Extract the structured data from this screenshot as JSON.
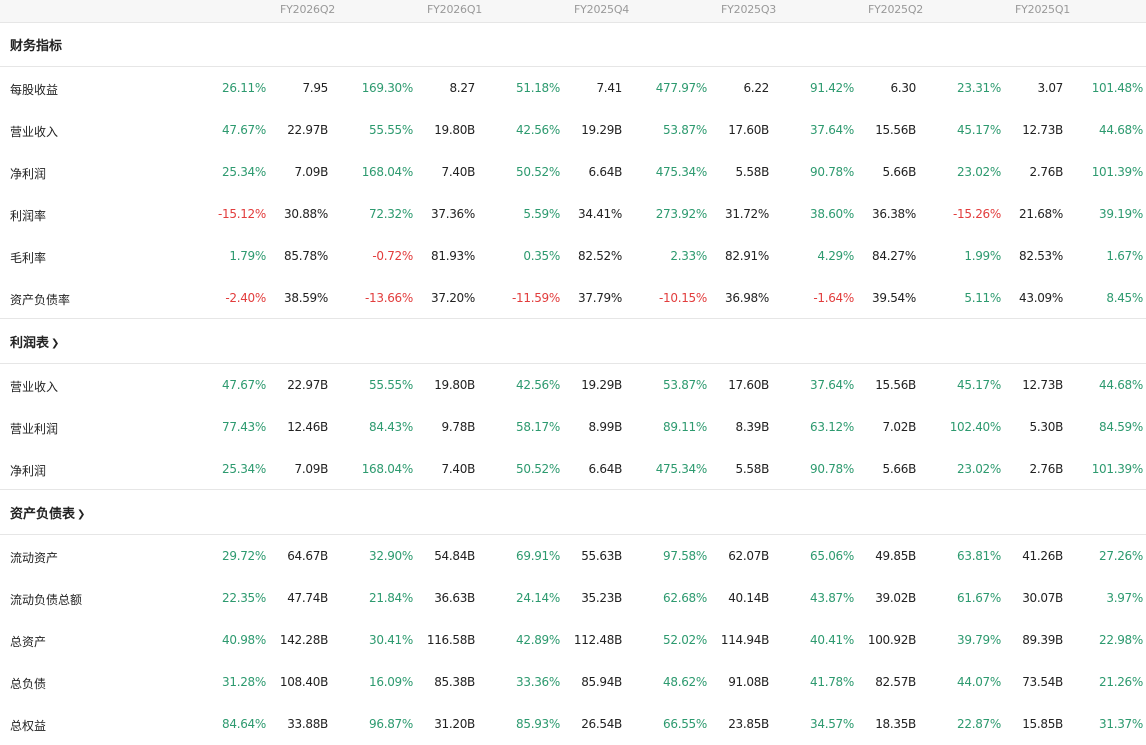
{
  "quarters": [
    "FY2026Q2",
    "FY2026Q1",
    "FY2025Q4",
    "FY2025Q3",
    "FY2025Q2",
    "FY2025Q1"
  ],
  "colors": {
    "positive": "#2d9a6f",
    "negative": "#e23d3d"
  },
  "sections": [
    {
      "title": "财务指标",
      "clickable": false,
      "rows": [
        {
          "label": "每股收益",
          "cells": [
            [
              "26.11%",
              "7.95"
            ],
            [
              "169.30%",
              "8.27"
            ],
            [
              "51.18%",
              "7.41"
            ],
            [
              "477.97%",
              "6.22"
            ],
            [
              "91.42%",
              "6.30"
            ],
            [
              "23.31%",
              "3.07"
            ]
          ],
          "tail": "101.48%"
        },
        {
          "label": "营业收入",
          "cells": [
            [
              "47.67%",
              "22.97B"
            ],
            [
              "55.55%",
              "19.80B"
            ],
            [
              "42.56%",
              "19.29B"
            ],
            [
              "53.87%",
              "17.60B"
            ],
            [
              "37.64%",
              "15.56B"
            ],
            [
              "45.17%",
              "12.73B"
            ]
          ],
          "tail": "44.68%"
        },
        {
          "label": "净利润",
          "cells": [
            [
              "25.34%",
              "7.09B"
            ],
            [
              "168.04%",
              "7.40B"
            ],
            [
              "50.52%",
              "6.64B"
            ],
            [
              "475.34%",
              "5.58B"
            ],
            [
              "90.78%",
              "5.66B"
            ],
            [
              "23.02%",
              "2.76B"
            ]
          ],
          "tail": "101.39%"
        },
        {
          "label": "利润率",
          "cells": [
            [
              "-15.12%",
              "30.88%"
            ],
            [
              "72.32%",
              "37.36%"
            ],
            [
              "5.59%",
              "34.41%"
            ],
            [
              "273.92%",
              "31.72%"
            ],
            [
              "38.60%",
              "36.38%"
            ],
            [
              "-15.26%",
              "21.68%"
            ]
          ],
          "tail": "39.19%"
        },
        {
          "label": "毛利率",
          "cells": [
            [
              "1.79%",
              "85.78%"
            ],
            [
              "-0.72%",
              "81.93%"
            ],
            [
              "0.35%",
              "82.52%"
            ],
            [
              "2.33%",
              "82.91%"
            ],
            [
              "4.29%",
              "84.27%"
            ],
            [
              "1.99%",
              "82.53%"
            ]
          ],
          "tail": "1.67%"
        },
        {
          "label": "资产负债率",
          "cells": [
            [
              "-2.40%",
              "38.59%"
            ],
            [
              "-13.66%",
              "37.20%"
            ],
            [
              "-11.59%",
              "37.79%"
            ],
            [
              "-10.15%",
              "36.98%"
            ],
            [
              "-1.64%",
              "39.54%"
            ],
            [
              "5.11%",
              "43.09%"
            ]
          ],
          "tail": "8.45%"
        }
      ]
    },
    {
      "title": "利润表",
      "clickable": true,
      "rows": [
        {
          "label": "营业收入",
          "cells": [
            [
              "47.67%",
              "22.97B"
            ],
            [
              "55.55%",
              "19.80B"
            ],
            [
              "42.56%",
              "19.29B"
            ],
            [
              "53.87%",
              "17.60B"
            ],
            [
              "37.64%",
              "15.56B"
            ],
            [
              "45.17%",
              "12.73B"
            ]
          ],
          "tail": "44.68%"
        },
        {
          "label": "营业利润",
          "cells": [
            [
              "77.43%",
              "12.46B"
            ],
            [
              "84.43%",
              "9.78B"
            ],
            [
              "58.17%",
              "8.99B"
            ],
            [
              "89.11%",
              "8.39B"
            ],
            [
              "63.12%",
              "7.02B"
            ],
            [
              "102.40%",
              "5.30B"
            ]
          ],
          "tail": "84.59%"
        },
        {
          "label": "净利润",
          "cells": [
            [
              "25.34%",
              "7.09B"
            ],
            [
              "168.04%",
              "7.40B"
            ],
            [
              "50.52%",
              "6.64B"
            ],
            [
              "475.34%",
              "5.58B"
            ],
            [
              "90.78%",
              "5.66B"
            ],
            [
              "23.02%",
              "2.76B"
            ]
          ],
          "tail": "101.39%"
        }
      ]
    },
    {
      "title": "资产负债表",
      "clickable": true,
      "rows": [
        {
          "label": "流动资产",
          "cells": [
            [
              "29.72%",
              "64.67B"
            ],
            [
              "32.90%",
              "54.84B"
            ],
            [
              "69.91%",
              "55.63B"
            ],
            [
              "97.58%",
              "62.07B"
            ],
            [
              "65.06%",
              "49.85B"
            ],
            [
              "63.81%",
              "41.26B"
            ]
          ],
          "tail": "27.26%"
        },
        {
          "label": "流动负债总额",
          "cells": [
            [
              "22.35%",
              "47.74B"
            ],
            [
              "21.84%",
              "36.63B"
            ],
            [
              "24.14%",
              "35.23B"
            ],
            [
              "62.68%",
              "40.14B"
            ],
            [
              "43.87%",
              "39.02B"
            ],
            [
              "61.67%",
              "30.07B"
            ]
          ],
          "tail": "3.97%"
        },
        {
          "label": "总资产",
          "cells": [
            [
              "40.98%",
              "142.28B"
            ],
            [
              "30.41%",
              "116.58B"
            ],
            [
              "42.89%",
              "112.48B"
            ],
            [
              "52.02%",
              "114.94B"
            ],
            [
              "40.41%",
              "100.92B"
            ],
            [
              "39.79%",
              "89.39B"
            ]
          ],
          "tail": "22.98%"
        },
        {
          "label": "总负债",
          "cells": [
            [
              "31.28%",
              "108.40B"
            ],
            [
              "16.09%",
              "85.38B"
            ],
            [
              "33.36%",
              "85.94B"
            ],
            [
              "48.62%",
              "91.08B"
            ],
            [
              "41.78%",
              "82.57B"
            ],
            [
              "44.07%",
              "73.54B"
            ]
          ],
          "tail": "21.26%"
        },
        {
          "label": "总权益",
          "cells": [
            [
              "84.64%",
              "33.88B"
            ],
            [
              "96.87%",
              "31.20B"
            ],
            [
              "85.93%",
              "26.54B"
            ],
            [
              "66.55%",
              "23.85B"
            ],
            [
              "34.57%",
              "18.35B"
            ],
            [
              "22.87%",
              "15.85B"
            ]
          ],
          "tail": "31.37%"
        }
      ]
    }
  ]
}
